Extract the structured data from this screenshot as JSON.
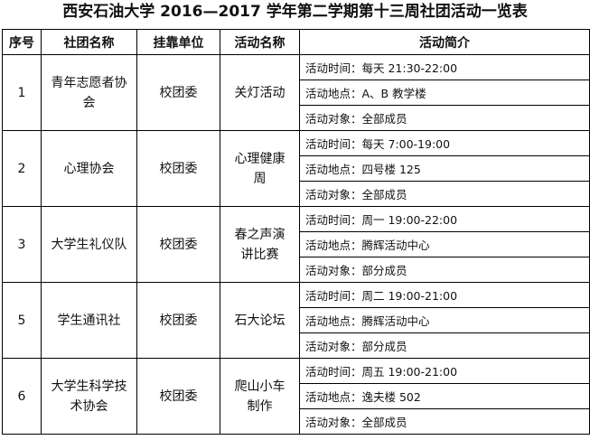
{
  "title": "西安石油大学 2016—2017 学年第二学期第十三周社团活动一览表",
  "headers": [
    "序号",
    "社团名称",
    "挂靠单位",
    "活动名称",
    "活动简介"
  ],
  "rows": [
    {
      "no": "1",
      "club": "青年志愿者协会",
      "unit": "校团委",
      "activity": "关灯活动",
      "details": [
        "活动时间：每天 21:30-22:00",
        "活动地点：A、B 教学楼",
        "活动对象：全部成员"
      ]
    },
    {
      "no": "2",
      "club": "心理协会",
      "unit": "校团委",
      "activity": "心理健康周",
      "details": [
        "活动时间：每天 7:00-19:00",
        "活动地点：四号楼 125",
        "活动对象：全部成员"
      ]
    },
    {
      "no": "3",
      "club": "大学生礼仪队",
      "unit": "校团委",
      "activity": "春之声演讲比赛",
      "details": [
        "活动时间：周一 19:00-22:00",
        "活动地点：腾辉活动中心",
        "活动对象：部分成员"
      ]
    },
    {
      "no": "5",
      "club": "学生通讯社",
      "unit": "校团委",
      "activity": "石大论坛",
      "details": [
        "活动时间：周二 19:00-21:00",
        "活动地点：腾辉活动中心",
        "活动对象：部分成员"
      ]
    },
    {
      "no": "6",
      "club": "大学生科学技术协会",
      "unit": "校团委",
      "activity": "爬山小车制作",
      "details": [
        "活动时间：周五 19:00-21:00",
        "活动地点：逸夫楼 502",
        "活动对象：全部成员"
      ]
    }
  ]
}
